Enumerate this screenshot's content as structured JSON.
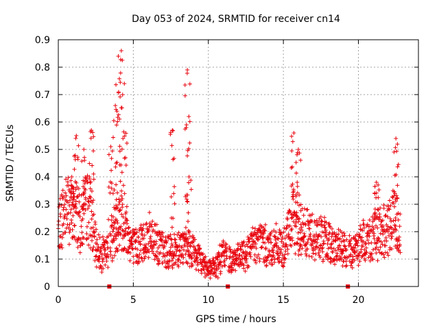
{
  "chart_data": {
    "type": "scatter",
    "title": "Day 053 of 2024, SRMTID for receiver cn14",
    "xlabel": "GPS time / hours",
    "ylabel": "SRMTID / TECUs",
    "xlim": [
      0,
      24
    ],
    "ylim": [
      0,
      0.9
    ],
    "x_ticks": [
      0,
      5,
      10,
      15,
      20
    ],
    "y_ticks": [
      0,
      0.1,
      0.2,
      0.3,
      0.4,
      0.5,
      0.6,
      0.7,
      0.8,
      0.9
    ],
    "x_tick_labels": [
      "0",
      "5",
      "10",
      "15",
      "20"
    ],
    "y_tick_labels": [
      "0",
      "0.1",
      "0.2",
      "0.3",
      "0.4",
      "0.5",
      "0.6",
      "0.7",
      "0.8",
      "0.9"
    ],
    "grid": true,
    "marker": "+",
    "color": "#e8000b",
    "series_profile": {
      "name": "SRMTID",
      "hours": [
        0,
        0.3,
        0.6,
        1,
        1.2,
        1.5,
        1.9,
        2.1,
        2.4,
        2.8,
        3.2,
        3.5,
        3.8,
        4.1,
        4.4,
        4.7,
        5,
        5.5,
        6,
        6.5,
        7,
        7.5,
        8,
        8.5,
        9,
        9.5,
        10,
        10.5,
        11,
        11.5,
        12,
        12.5,
        13,
        13.5,
        14,
        14.5,
        15,
        15.3,
        15.6,
        15.9,
        16.2,
        16.6,
        17,
        17.5,
        18,
        18.5,
        19,
        19.5,
        20,
        20.5,
        21,
        21.5,
        22,
        22.3,
        22.6,
        22.8
      ],
      "median": [
        0.2,
        0.26,
        0.3,
        0.25,
        0.28,
        0.22,
        0.3,
        0.28,
        0.16,
        0.12,
        0.12,
        0.18,
        0.2,
        0.25,
        0.22,
        0.18,
        0.14,
        0.16,
        0.18,
        0.17,
        0.13,
        0.12,
        0.15,
        0.14,
        0.13,
        0.09,
        0.07,
        0.07,
        0.12,
        0.1,
        0.1,
        0.12,
        0.15,
        0.17,
        0.14,
        0.15,
        0.13,
        0.18,
        0.25,
        0.22,
        0.2,
        0.2,
        0.18,
        0.18,
        0.16,
        0.15,
        0.13,
        0.12,
        0.15,
        0.17,
        0.18,
        0.2,
        0.2,
        0.25,
        0.24,
        0.2
      ],
      "peaks": [
        {
          "hour": 0.9,
          "value": 0.4
        },
        {
          "hour": 1.2,
          "value": 0.55
        },
        {
          "hour": 1.7,
          "value": 0.5
        },
        {
          "hour": 2.2,
          "value": 0.57
        },
        {
          "hour": 3.5,
          "value": 0.51
        },
        {
          "hour": 3.8,
          "value": 0.66
        },
        {
          "hour": 4.0,
          "value": 0.84
        },
        {
          "hour": 4.2,
          "value": 0.86
        },
        {
          "hour": 4.4,
          "value": 0.74
        },
        {
          "hour": 7.6,
          "value": 0.57
        },
        {
          "hour": 8.6,
          "value": 0.79
        },
        {
          "hour": 8.7,
          "value": 0.62
        },
        {
          "hour": 15.7,
          "value": 0.56
        },
        {
          "hour": 16.0,
          "value": 0.5
        },
        {
          "hour": 21.2,
          "value": 0.38
        },
        {
          "hour": 22.5,
          "value": 0.54
        }
      ]
    },
    "gap_markers_hours": [
      3.4,
      11.3,
      19.3
    ]
  }
}
